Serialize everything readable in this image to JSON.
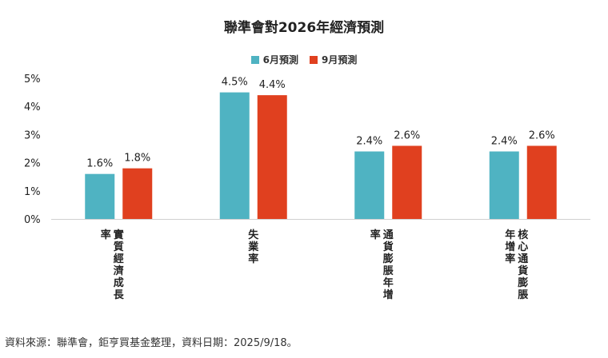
{
  "chart_data": {
    "type": "bar",
    "title": "聯準會對2026年經濟預測",
    "categories": [
      "實質經濟成長率",
      "失業率",
      "通貨膨脹年增率",
      "核心通貨膨脹年增率"
    ],
    "series": [
      {
        "name": "6月預測",
        "values": [
          1.6,
          4.5,
          2.4,
          2.4
        ],
        "labels": [
          "1.6%",
          "4.5%",
          "2.4%",
          "2.4%"
        ],
        "color": "#4fb3c2"
      },
      {
        "name": "9月預測",
        "values": [
          1.8,
          4.4,
          2.6,
          2.6
        ],
        "labels": [
          "1.8%",
          "4.4%",
          "2.6%",
          "2.6%"
        ],
        "color": "#e0401f"
      }
    ],
    "yticks": [
      "0%",
      "1%",
      "2%",
      "3%",
      "4%",
      "5%"
    ],
    "ylim": [
      0,
      5
    ],
    "grid": false,
    "legend": "top-center"
  },
  "source_note": "資料來源：聯準會，鉅亨買基金整理，資料日期：2025/9/18。"
}
